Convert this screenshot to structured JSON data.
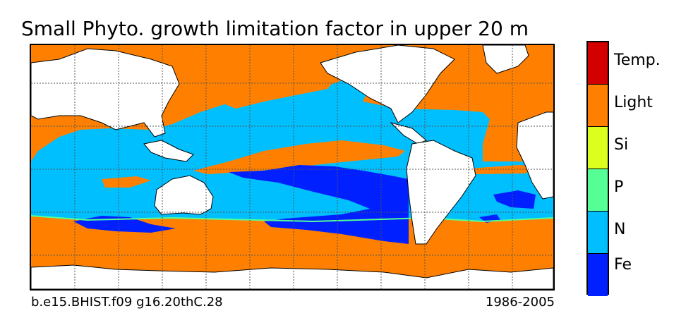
{
  "title": "Small Phyto. growth limitation factor in upper 20 m",
  "footer": {
    "case": "b.e15.BHIST.f09 g16.20thC.28",
    "period": "1986-2005"
  },
  "legend": {
    "categories": [
      {
        "label": "Temp.",
        "color": "#d40000"
      },
      {
        "label": "Light",
        "color": "#ff8000"
      },
      {
        "label": "Si",
        "color": "#dcff1e"
      },
      {
        "label": "P",
        "color": "#55ff96"
      },
      {
        "label": "N",
        "color": "#00bfff"
      },
      {
        "label": "Fe",
        "color": "#0020ff"
      }
    ]
  },
  "colors": {
    "land": "#ffffff",
    "light": "#ff8000",
    "nitrogen": "#00bfff",
    "iron": "#0020ff",
    "phosphorus": "#55ff96"
  }
}
